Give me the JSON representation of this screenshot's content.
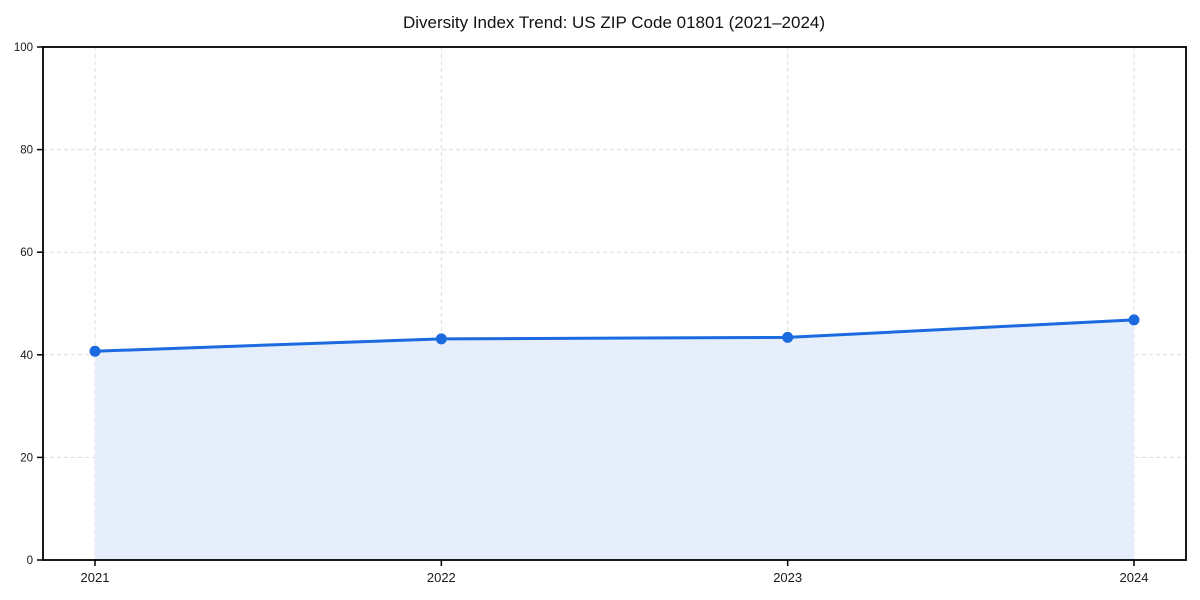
{
  "chart_data": {
    "type": "area",
    "title": "Diversity Index Trend: US ZIP Code 01801 (2021–2024)",
    "categories": [
      "2021",
      "2022",
      "2023",
      "2024"
    ],
    "series": [
      {
        "name": "Diversity Index",
        "values": [
          40.7,
          43.1,
          43.4,
          46.8
        ]
      }
    ],
    "xlabel": "",
    "ylabel": "",
    "ylim": [
      0,
      100
    ],
    "yticks": [
      0,
      20,
      40,
      60,
      80,
      100
    ],
    "grid": true,
    "grid_style": "dashed",
    "legend_position": "none",
    "colors": {
      "line": "#1b6ae0",
      "marker": "#1b6ae0",
      "fill": "#e7eefb",
      "grid": "#dcdcdc",
      "spine": "#000000",
      "title_text": "#111111",
      "tick_text": "#1a1a1a",
      "background": "#ffffff"
    }
  }
}
